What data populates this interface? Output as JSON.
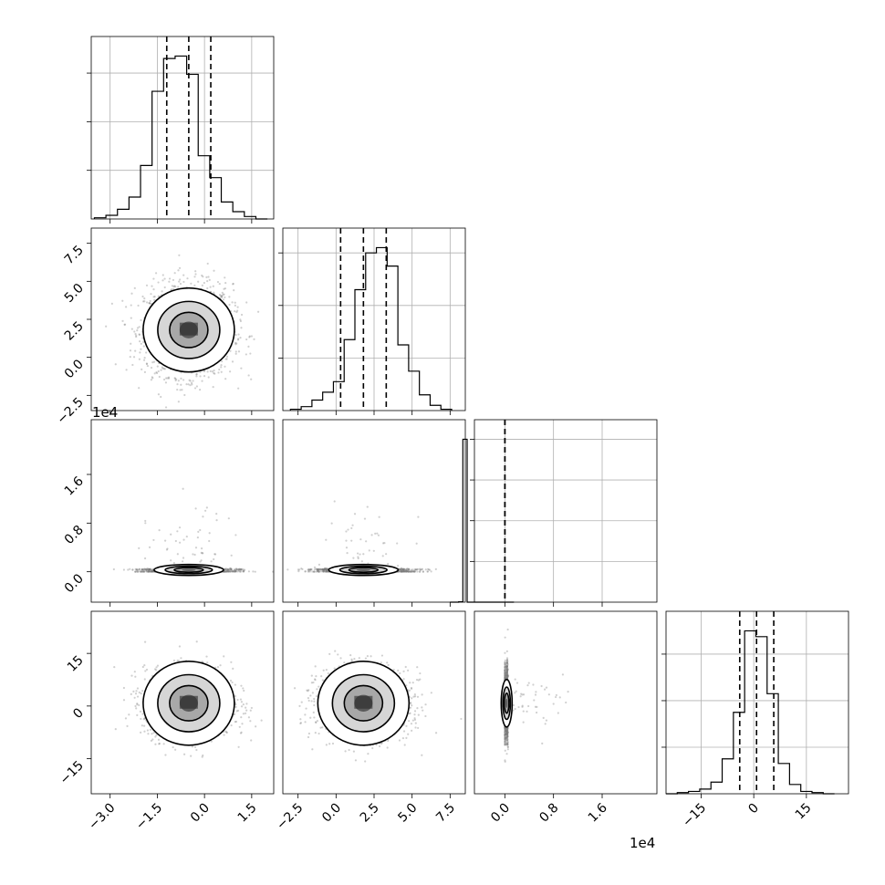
{
  "chart_data": {
    "type": "corner",
    "variables": [
      {
        "range": [
          -3.6,
          2.2
        ],
        "ticks": [
          -3.0,
          -1.5,
          0.0,
          1.5
        ],
        "tick_labels": [
          "−3.0",
          "−1.5",
          "0.0",
          "1.5"
        ],
        "quantiles": [
          -1.2,
          -0.5,
          0.2
        ],
        "mean": -0.5,
        "sd": 0.7
      },
      {
        "range": [
          -3.5,
          8.5
        ],
        "ticks": [
          -2.5,
          0.0,
          2.5,
          5.0,
          7.5
        ],
        "tick_labels": [
          "−2.5",
          "0.0",
          "2.5",
          "5.0",
          "7.5"
        ],
        "quantiles": [
          0.3,
          1.8,
          3.3
        ],
        "mean": 1.8,
        "sd": 1.5
      },
      {
        "range": [
          -0.5,
          2.5
        ],
        "ticks": [
          0.0,
          0.8,
          1.6
        ],
        "tick_labels": [
          "0.0",
          "0.8",
          "1.6"
        ],
        "quantiles": [
          0.0,
          0.0,
          0.0
        ],
        "offset_label": "1e4"
      },
      {
        "range": [
          -25,
          27
        ],
        "ticks": [
          -15,
          0,
          15
        ],
        "tick_labels": [
          "−15",
          "0",
          "15"
        ],
        "quantiles": [
          -4,
          0.8,
          5.7
        ],
        "mean": 0.8,
        "sd": 4.9
      }
    ],
    "histograms": [
      {
        "variable": 0,
        "counts": [
          1,
          3,
          8,
          18,
          44,
          105,
          132,
          134,
          119,
          52,
          34,
          14,
          6,
          2,
          0
        ]
      },
      {
        "variable": 1,
        "counts": [
          1,
          3,
          8,
          14,
          22,
          54,
          92,
          120,
          124,
          110,
          50,
          30,
          12,
          4,
          1
        ]
      },
      {
        "variable": 2,
        "counts": [
          0,
          0,
          1,
          400,
          0,
          0,
          0,
          0,
          0,
          0,
          0,
          0,
          0,
          0,
          0
        ]
      },
      {
        "variable": 3,
        "counts": [
          0,
          1,
          2,
          4,
          10,
          30,
          70,
          140,
          135,
          86,
          26,
          8,
          2,
          1,
          0
        ]
      }
    ],
    "pairs": [
      {
        "x_variable": 0,
        "y_variable": 1
      },
      {
        "x_variable": 0,
        "y_variable": 2
      },
      {
        "x_variable": 1,
        "y_variable": 2
      },
      {
        "x_variable": 0,
        "y_variable": 3
      },
      {
        "x_variable": 1,
        "y_variable": 3
      },
      {
        "x_variable": 2,
        "y_variable": 3
      }
    ],
    "grid": true
  }
}
